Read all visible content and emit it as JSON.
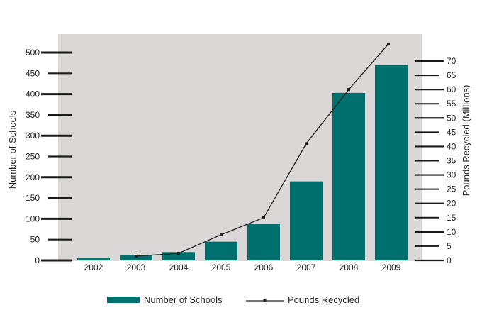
{
  "chart_data": {
    "type": "bar",
    "categories": [
      "2002",
      "2003",
      "2004",
      "2005",
      "2006",
      "2007",
      "2008",
      "2009"
    ],
    "series": [
      {
        "name": "Number of Schools",
        "type": "bar",
        "axis": "left",
        "color": "#00706e",
        "values": [
          5,
          12,
          20,
          45,
          88,
          190,
          403,
          470
        ]
      },
      {
        "name": "Pounds Recycled",
        "type": "line",
        "axis": "right",
        "color": "#222222",
        "values": [
          null,
          1.5,
          2.5,
          9,
          15,
          41,
          60,
          76
        ]
      }
    ],
    "ylabel": "Number of Schools",
    "ylabel_right": "Pounds Recycled (Millions)",
    "ylim": [
      0,
      500
    ],
    "ylim_right": [
      0,
      70
    ],
    "yticks": [
      0,
      50,
      100,
      150,
      200,
      250,
      300,
      350,
      400,
      450,
      500
    ],
    "yticks_right": [
      0,
      5,
      10,
      15,
      20,
      25,
      30,
      35,
      40,
      45,
      50,
      55,
      60,
      65,
      70
    ],
    "plot_background": "#dcd7d7",
    "grid": false,
    "legend_position": "bottom"
  },
  "legend": {
    "schools_label": "Number of Schools",
    "pounds_label": "Pounds Recycled"
  }
}
